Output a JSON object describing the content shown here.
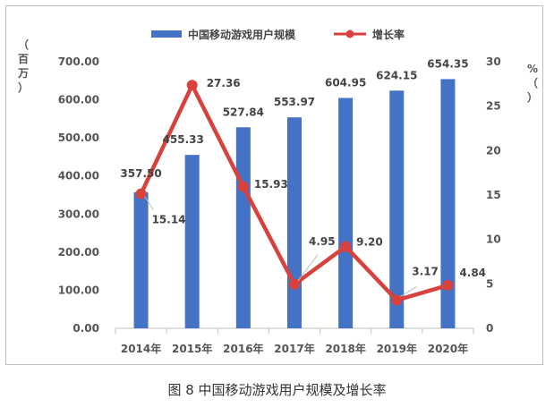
{
  "caption": "图 8  中国移动游戏用户规模及增长率",
  "chart_data": {
    "type": "bar",
    "categories": [
      "2014年",
      "2015年",
      "2016年",
      "2017年",
      "2018年",
      "2019年",
      "2020年"
    ],
    "series": [
      {
        "name": "中国移动游戏用户规模",
        "type": "bar",
        "axis": "left",
        "color": "#4472C4",
        "values": [
          357.5,
          455.33,
          527.84,
          553.97,
          604.95,
          624.15,
          654.35
        ],
        "labels": [
          "357.50",
          "455.33",
          "527.84",
          "553.97",
          "604.95",
          "624.15",
          "654.35"
        ]
      },
      {
        "name": "增长率",
        "type": "line",
        "axis": "right",
        "color": "#D9413C",
        "values": [
          15.14,
          27.36,
          15.93,
          4.95,
          9.2,
          3.17,
          4.84
        ],
        "labels": [
          "15.14",
          "27.36",
          "15.93",
          "4.95",
          "9.20",
          "3.17",
          "4.84"
        ]
      }
    ],
    "y_left": {
      "label_chars": [
        "（",
        "百",
        "万",
        "）"
      ],
      "ylim": [
        0,
        700
      ],
      "ticks": [
        "0.00",
        "100.00",
        "200.00",
        "300.00",
        "400.00",
        "500.00",
        "600.00",
        "700.00"
      ]
    },
    "y_right": {
      "label_chars": [
        "%",
        "（",
        "）"
      ],
      "ylim": [
        0,
        30
      ],
      "ticks": [
        "0",
        "5",
        "10",
        "15",
        "20",
        "25",
        "30"
      ]
    },
    "grid": false,
    "legend_position": "top-center"
  }
}
